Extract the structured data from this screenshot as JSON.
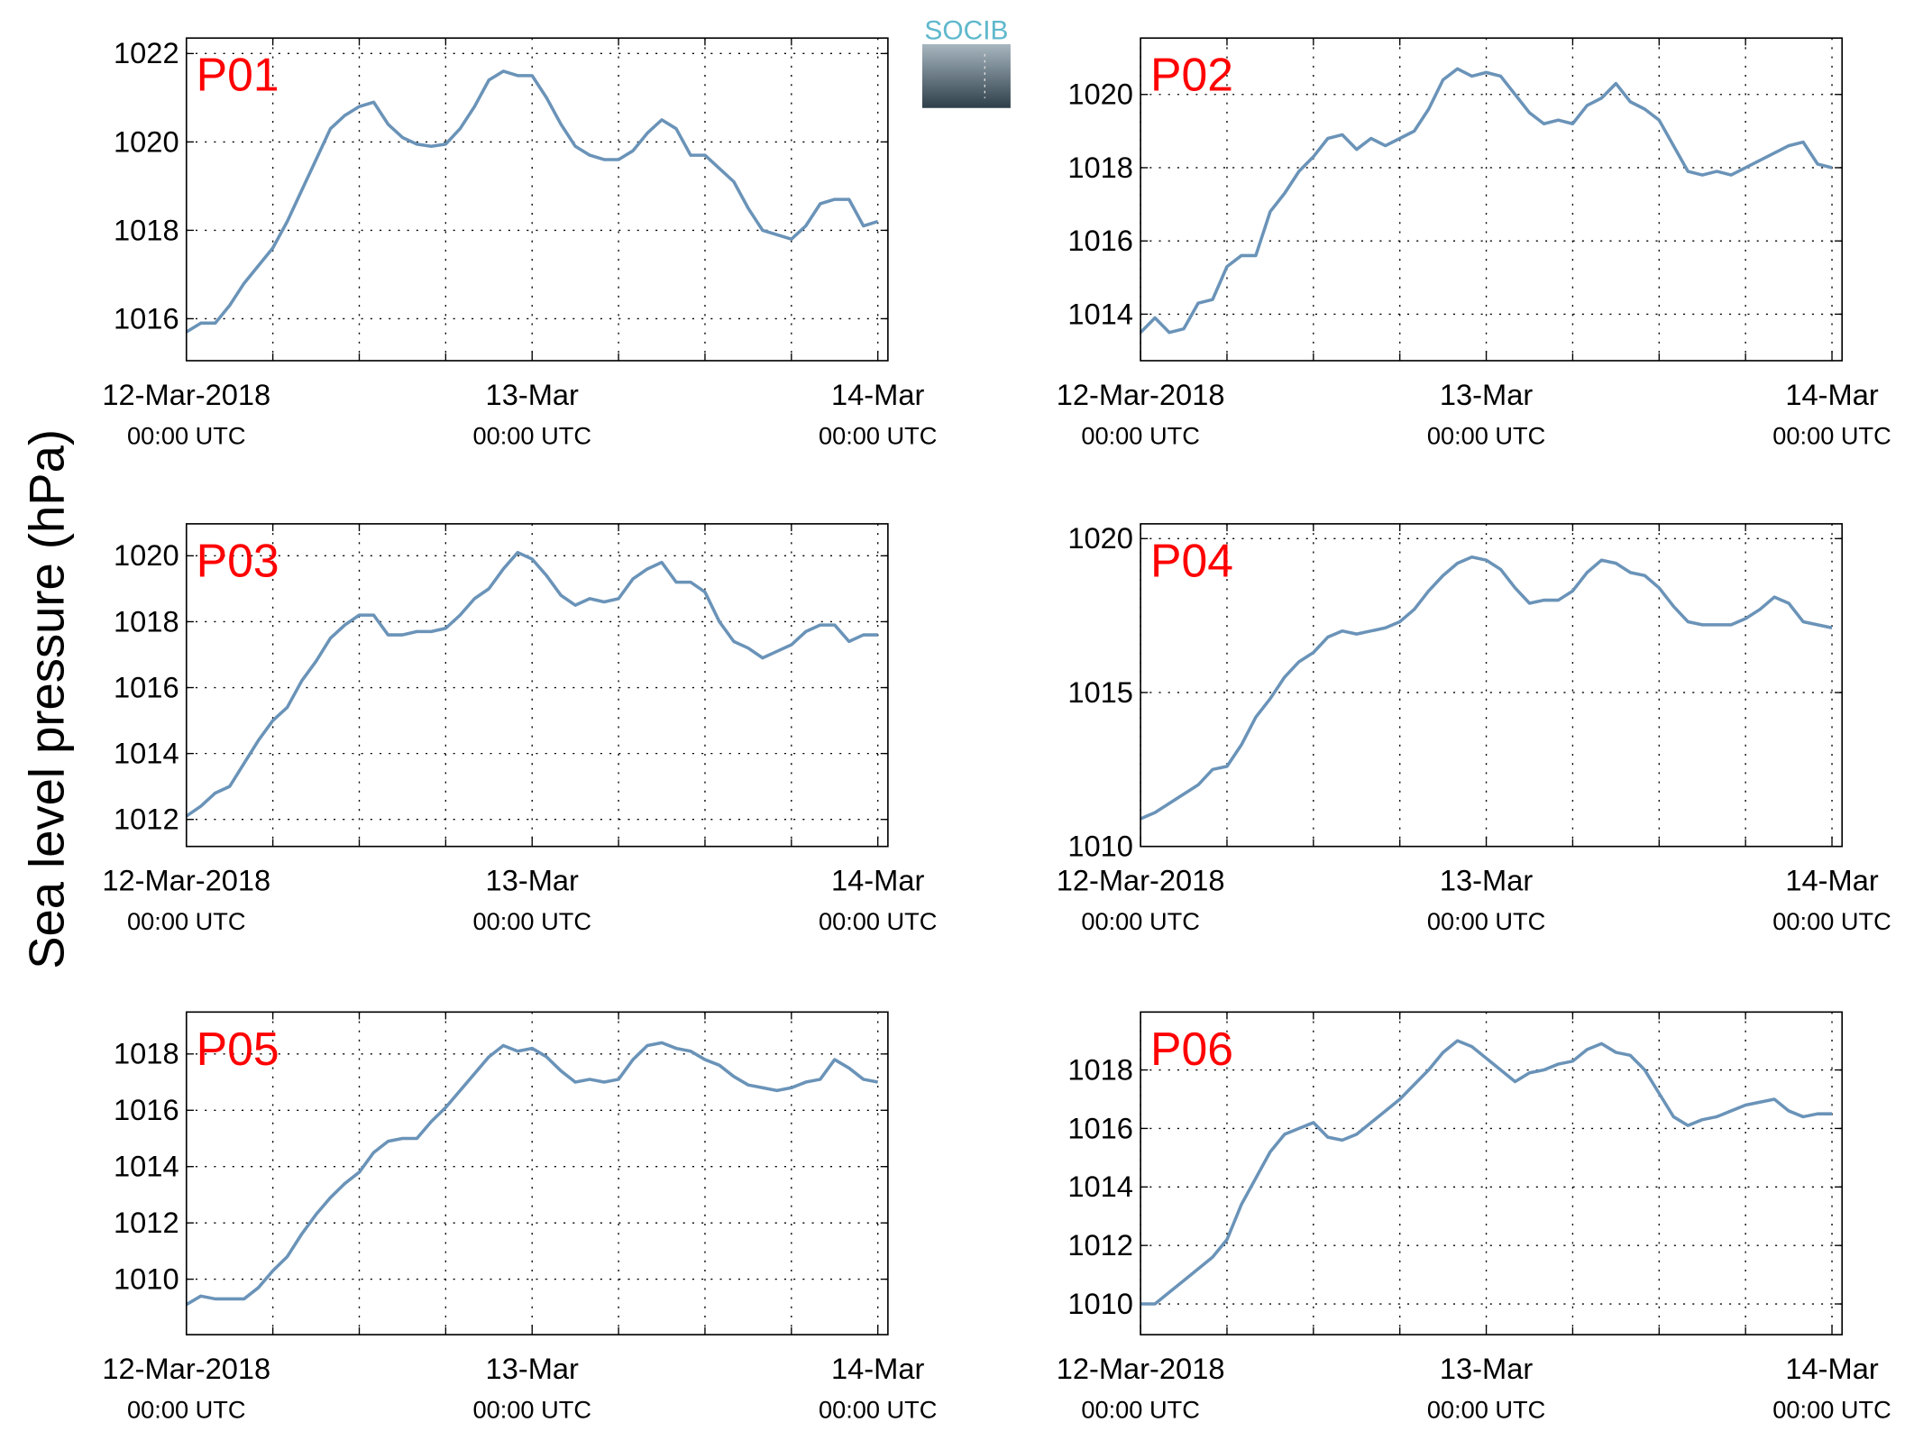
{
  "figure": {
    "ylabel": "Sea level pressure (hPa)",
    "logo": "SOCIB"
  },
  "chart_data": [
    {
      "type": "line",
      "title": "P01",
      "color": "#6a93b8",
      "grid": true,
      "xlim": [
        0,
        48.7
      ],
      "ylim": [
        1015.05,
        1022.35
      ],
      "xticks": [
        {
          "value": 0,
          "label": [
            "12-Mar-2018",
            "00:00 UTC"
          ]
        },
        {
          "value": 24,
          "label": [
            "13-Mar",
            "00:00 UTC"
          ]
        },
        {
          "value": 48,
          "label": [
            "14-Mar",
            "00:00 UTC"
          ]
        }
      ],
      "xminor": [
        6,
        12,
        18,
        30,
        36,
        42
      ],
      "yticks": [
        1016,
        1018,
        1020,
        1022
      ],
      "x": [
        0,
        1,
        2,
        3,
        4,
        5,
        6,
        7,
        8,
        9,
        10,
        11,
        12,
        13,
        14,
        15,
        16,
        17,
        18,
        19,
        20,
        21,
        22,
        23,
        24,
        25,
        26,
        27,
        28,
        29,
        30,
        31,
        32,
        33,
        34,
        35,
        36,
        37,
        38,
        39,
        40,
        41,
        42,
        43,
        44,
        45,
        46,
        47,
        48
      ],
      "values": [
        1015.7,
        1015.9,
        1015.9,
        1016.3,
        1016.8,
        1017.2,
        1017.6,
        1018.2,
        1018.9,
        1019.6,
        1020.3,
        1020.6,
        1020.8,
        1020.9,
        1020.4,
        1020.1,
        1019.95,
        1019.9,
        1019.95,
        1020.3,
        1020.8,
        1021.4,
        1021.6,
        1021.5,
        1021.5,
        1021.0,
        1020.4,
        1019.9,
        1019.7,
        1019.6,
        1019.6,
        1019.8,
        1020.2,
        1020.5,
        1020.3,
        1019.7,
        1019.7,
        1019.4,
        1019.1,
        1018.5,
        1018.0,
        1017.9,
        1017.8,
        1018.1,
        1018.6,
        1018.7,
        1018.7,
        1018.1,
        1018.2
      ]
    },
    {
      "type": "line",
      "title": "P02",
      "color": "#6a93b8",
      "grid": true,
      "xlim": [
        0,
        48.7
      ],
      "ylim": [
        1012.73,
        1021.54
      ],
      "xticks": [
        {
          "value": 0,
          "label": [
            "12-Mar-2018",
            "00:00 UTC"
          ]
        },
        {
          "value": 24,
          "label": [
            "13-Mar",
            "00:00 UTC"
          ]
        },
        {
          "value": 48,
          "label": [
            "14-Mar",
            "00:00 UTC"
          ]
        }
      ],
      "xminor": [
        6,
        12,
        18,
        30,
        36,
        42
      ],
      "yticks": [
        1014,
        1016,
        1018,
        1020
      ],
      "x": [
        0,
        1,
        2,
        3,
        4,
        5,
        6,
        7,
        8,
        9,
        10,
        11,
        12,
        13,
        14,
        15,
        16,
        17,
        18,
        19,
        20,
        21,
        22,
        23,
        24,
        25,
        26,
        27,
        28,
        29,
        30,
        31,
        32,
        33,
        34,
        35,
        36,
        37,
        38,
        39,
        40,
        41,
        42,
        43,
        44,
        45,
        46,
        47,
        48
      ],
      "values": [
        1013.5,
        1013.9,
        1013.5,
        1013.6,
        1014.3,
        1014.4,
        1015.3,
        1015.6,
        1015.6,
        1016.8,
        1017.3,
        1017.9,
        1018.3,
        1018.8,
        1018.9,
        1018.5,
        1018.8,
        1018.6,
        1018.8,
        1019.0,
        1019.6,
        1020.4,
        1020.7,
        1020.5,
        1020.6,
        1020.5,
        1020.0,
        1019.5,
        1019.2,
        1019.3,
        1019.2,
        1019.7,
        1019.9,
        1020.3,
        1019.8,
        1019.6,
        1019.3,
        1018.6,
        1017.9,
        1017.8,
        1017.9,
        1017.8,
        1018.0,
        1018.2,
        1018.4,
        1018.6,
        1018.7,
        1018.1,
        1018.0
      ]
    },
    {
      "type": "line",
      "title": "P03",
      "color": "#6a93b8",
      "grid": true,
      "xlim": [
        0,
        48.7
      ],
      "ylim": [
        1011.18,
        1020.97
      ],
      "xticks": [
        {
          "value": 0,
          "label": [
            "12-Mar-2018",
            "00:00 UTC"
          ]
        },
        {
          "value": 24,
          "label": [
            "13-Mar",
            "00:00 UTC"
          ]
        },
        {
          "value": 48,
          "label": [
            "14-Mar",
            "00:00 UTC"
          ]
        }
      ],
      "xminor": [
        6,
        12,
        18,
        30,
        36,
        42
      ],
      "yticks": [
        1012,
        1014,
        1016,
        1018,
        1020
      ],
      "x": [
        0,
        1,
        2,
        3,
        4,
        5,
        6,
        7,
        8,
        9,
        10,
        11,
        12,
        13,
        14,
        15,
        16,
        17,
        18,
        19,
        20,
        21,
        22,
        23,
        24,
        25,
        26,
        27,
        28,
        29,
        30,
        31,
        32,
        33,
        34,
        35,
        36,
        37,
        38,
        39,
        40,
        41,
        42,
        43,
        44,
        45,
        46,
        47,
        48
      ],
      "values": [
        1012.1,
        1012.4,
        1012.8,
        1013.0,
        1013.7,
        1014.4,
        1015.0,
        1015.4,
        1016.2,
        1016.8,
        1017.5,
        1017.9,
        1018.2,
        1018.2,
        1017.6,
        1017.6,
        1017.7,
        1017.7,
        1017.8,
        1018.2,
        1018.7,
        1019.0,
        1019.6,
        1020.1,
        1019.9,
        1019.4,
        1018.8,
        1018.5,
        1018.7,
        1018.6,
        1018.7,
        1019.3,
        1019.6,
        1019.8,
        1019.2,
        1019.2,
        1018.9,
        1018.0,
        1017.4,
        1017.2,
        1016.9,
        1017.1,
        1017.3,
        1017.7,
        1017.9,
        1017.9,
        1017.4,
        1017.6,
        1017.6
      ]
    },
    {
      "type": "line",
      "title": "P04",
      "color": "#6a93b8",
      "grid": true,
      "xlim": [
        0,
        48.7
      ],
      "ylim": [
        1010,
        1020.48
      ],
      "xticks": [
        {
          "value": 0,
          "label": [
            "12-Mar-2018",
            "00:00 UTC"
          ]
        },
        {
          "value": 24,
          "label": [
            "13-Mar",
            "00:00 UTC"
          ]
        },
        {
          "value": 48,
          "label": [
            "14-Mar",
            "00:00 UTC"
          ]
        }
      ],
      "xminor": [
        6,
        12,
        18,
        30,
        36,
        42
      ],
      "yticks": [
        1010,
        1015,
        1020
      ],
      "x": [
        0,
        1,
        2,
        3,
        4,
        5,
        6,
        7,
        8,
        9,
        10,
        11,
        12,
        13,
        14,
        15,
        16,
        17,
        18,
        19,
        20,
        21,
        22,
        23,
        24,
        25,
        26,
        27,
        28,
        29,
        30,
        31,
        32,
        33,
        34,
        35,
        36,
        37,
        38,
        39,
        40,
        41,
        42,
        43,
        44,
        45,
        46,
        47,
        48
      ],
      "values": [
        1010.9,
        1011.1,
        1011.4,
        1011.7,
        1012.0,
        1012.5,
        1012.6,
        1013.3,
        1014.2,
        1014.8,
        1015.5,
        1016.0,
        1016.3,
        1016.8,
        1017.0,
        1016.9,
        1017.0,
        1017.1,
        1017.3,
        1017.7,
        1018.3,
        1018.8,
        1019.2,
        1019.4,
        1019.3,
        1019.0,
        1018.4,
        1017.9,
        1018.0,
        1018.0,
        1018.3,
        1018.9,
        1019.3,
        1019.2,
        1018.9,
        1018.8,
        1018.4,
        1017.8,
        1017.3,
        1017.2,
        1017.2,
        1017.2,
        1017.4,
        1017.7,
        1018.1,
        1017.9,
        1017.3,
        1017.2,
        1017.1
      ]
    },
    {
      "type": "line",
      "title": "P05",
      "color": "#6a93b8",
      "grid": true,
      "xlim": [
        0,
        48.7
      ],
      "ylim": [
        1008.03,
        1019.49
      ],
      "xticks": [
        {
          "value": 0,
          "label": [
            "12-Mar-2018",
            "00:00 UTC"
          ]
        },
        {
          "value": 24,
          "label": [
            "13-Mar",
            "00:00 UTC"
          ]
        },
        {
          "value": 48,
          "label": [
            "14-Mar",
            "00:00 UTC"
          ]
        }
      ],
      "xminor": [
        6,
        12,
        18,
        30,
        36,
        42
      ],
      "yticks": [
        1010,
        1012,
        1014,
        1016,
        1018
      ],
      "x": [
        0,
        1,
        2,
        3,
        4,
        5,
        6,
        7,
        8,
        9,
        10,
        11,
        12,
        13,
        14,
        15,
        16,
        17,
        18,
        19,
        20,
        21,
        22,
        23,
        24,
        25,
        26,
        27,
        28,
        29,
        30,
        31,
        32,
        33,
        34,
        35,
        36,
        37,
        38,
        39,
        40,
        41,
        42,
        43,
        44,
        45,
        46,
        47,
        48
      ],
      "values": [
        1009.1,
        1009.4,
        1009.3,
        1009.3,
        1009.3,
        1009.7,
        1010.3,
        1010.8,
        1011.6,
        1012.3,
        1012.9,
        1013.4,
        1013.8,
        1014.5,
        1014.9,
        1015.0,
        1015.0,
        1015.6,
        1016.1,
        1016.7,
        1017.3,
        1017.9,
        1018.3,
        1018.1,
        1018.2,
        1017.9,
        1017.4,
        1017.0,
        1017.1,
        1017.0,
        1017.1,
        1017.8,
        1018.3,
        1018.4,
        1018.2,
        1018.1,
        1017.8,
        1017.6,
        1017.2,
        1016.9,
        1016.8,
        1016.7,
        1016.8,
        1017.0,
        1017.1,
        1017.8,
        1017.5,
        1017.1,
        1017.0
      ]
    },
    {
      "type": "line",
      "title": "P06",
      "color": "#6a93b8",
      "grid": true,
      "xlim": [
        0,
        48.7
      ],
      "ylim": [
        1008.95,
        1019.98
      ],
      "xticks": [
        {
          "value": 0,
          "label": [
            "12-Mar-2018",
            "00:00 UTC"
          ]
        },
        {
          "value": 24,
          "label": [
            "13-Mar",
            "00:00 UTC"
          ]
        },
        {
          "value": 48,
          "label": [
            "14-Mar",
            "00:00 UTC"
          ]
        }
      ],
      "xminor": [
        6,
        12,
        18,
        30,
        36,
        42
      ],
      "yticks": [
        1010,
        1012,
        1014,
        1016,
        1018
      ],
      "x": [
        0,
        1,
        2,
        3,
        4,
        5,
        6,
        7,
        8,
        9,
        10,
        11,
        12,
        13,
        14,
        15,
        16,
        17,
        18,
        19,
        20,
        21,
        22,
        23,
        24,
        25,
        26,
        27,
        28,
        29,
        30,
        31,
        32,
        33,
        34,
        35,
        36,
        37,
        38,
        39,
        40,
        41,
        42,
        43,
        44,
        45,
        46,
        47,
        48
      ],
      "values": [
        1010.0,
        1010.0,
        1010.4,
        1010.8,
        1011.2,
        1011.6,
        1012.2,
        1013.4,
        1014.3,
        1015.2,
        1015.8,
        1016.0,
        1016.2,
        1015.7,
        1015.6,
        1015.8,
        1016.2,
        1016.6,
        1017.0,
        1017.5,
        1018.0,
        1018.6,
        1019.0,
        1018.8,
        1018.4,
        1018.0,
        1017.6,
        1017.9,
        1018.0,
        1018.2,
        1018.3,
        1018.7,
        1018.9,
        1018.6,
        1018.5,
        1018.0,
        1017.2,
        1016.4,
        1016.1,
        1016.3,
        1016.4,
        1016.6,
        1016.8,
        1016.9,
        1017.0,
        1016.6,
        1016.4,
        1016.5,
        1016.5
      ]
    }
  ]
}
